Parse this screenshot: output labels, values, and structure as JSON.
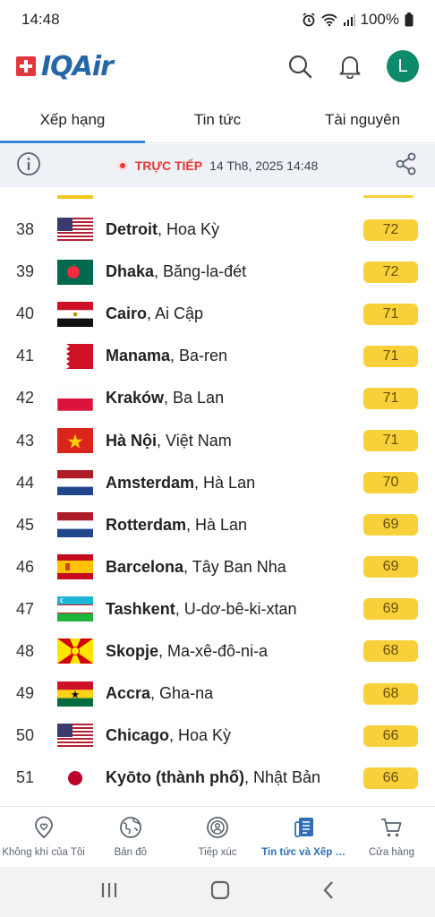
{
  "status_bar": {
    "time": "14:48",
    "battery": "100%"
  },
  "header": {
    "logo_text": "IQAir",
    "avatar_initial": "L"
  },
  "tabs": [
    {
      "label": "Xếp hạng",
      "active": true
    },
    {
      "label": "Tin tức",
      "active": false
    },
    {
      "label": "Tài nguyên",
      "active": false
    }
  ],
  "live": {
    "label": "TRỰC TIẾP",
    "timestamp": "14 Th8, 2025 14:48"
  },
  "rankings": [
    {
      "rank": "38",
      "city": "Detroit",
      "country": ", Hoa Kỳ",
      "aqi": "72",
      "flag": "usa"
    },
    {
      "rank": "39",
      "city": "Dhaka",
      "country": ", Băng-la-đét",
      "aqi": "72",
      "flag": "bangladesh"
    },
    {
      "rank": "40",
      "city": "Cairo",
      "country": ", Ai Cập",
      "aqi": "71",
      "flag": "egypt"
    },
    {
      "rank": "41",
      "city": "Manama",
      "country": ", Ba-ren",
      "aqi": "71",
      "flag": "bahrain"
    },
    {
      "rank": "42",
      "city": "Kraków",
      "country": ", Ba Lan",
      "aqi": "71",
      "flag": "poland"
    },
    {
      "rank": "43",
      "city": "Hà Nội",
      "country": ", Việt Nam",
      "aqi": "71",
      "flag": "vietnam"
    },
    {
      "rank": "44",
      "city": "Amsterdam",
      "country": ", Hà Lan",
      "aqi": "70",
      "flag": "netherlands"
    },
    {
      "rank": "45",
      "city": "Rotterdam",
      "country": ", Hà Lan",
      "aqi": "69",
      "flag": "netherlands"
    },
    {
      "rank": "46",
      "city": "Barcelona",
      "country": ", Tây Ban Nha",
      "aqi": "69",
      "flag": "spain"
    },
    {
      "rank": "47",
      "city": "Tashkent",
      "country": ", U-dơ-bê-ki-xtan",
      "aqi": "69",
      "flag": "uzbekistan"
    },
    {
      "rank": "48",
      "city": "Skopje",
      "country": ", Ma-xê-đô-ni-a",
      "aqi": "68",
      "flag": "macedonia"
    },
    {
      "rank": "49",
      "city": "Accra",
      "country": ", Gha-na",
      "aqi": "68",
      "flag": "ghana"
    },
    {
      "rank": "50",
      "city": "Chicago",
      "country": ", Hoa Kỳ",
      "aqi": "66",
      "flag": "usa"
    },
    {
      "rank": "51",
      "city": "Kyōto (thành phố)",
      "country": ", Nhật Bản",
      "aqi": "66",
      "flag": "japan"
    }
  ],
  "bottom_nav": [
    {
      "label": "Không khí của Tôi",
      "icon": "heart-location-icon",
      "active": false
    },
    {
      "label": "Bản đồ",
      "icon": "globe-icon",
      "active": false
    },
    {
      "label": "Tiếp xúc",
      "icon": "exposure-person-icon",
      "active": false
    },
    {
      "label": "Tin tức và Xếp h...",
      "icon": "news-icon",
      "active": true
    },
    {
      "label": "Cửa hàng",
      "icon": "cart-icon",
      "active": false
    }
  ],
  "colors": {
    "accent": "#3a86d6",
    "aqi_moderate": "#f7d03a",
    "live_red": "#e53935",
    "brand_blue": "#2466a6"
  }
}
